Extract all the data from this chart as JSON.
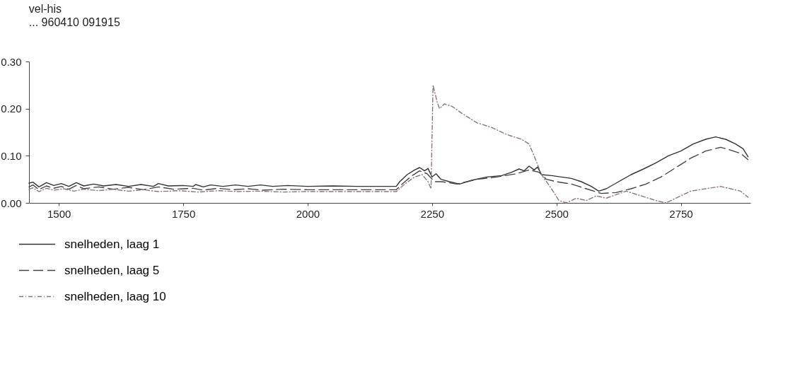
{
  "chart_data": {
    "type": "line",
    "title": "vel-his",
    "subtitle": "... 960410 091915",
    "xlim": [
      1440,
      2890
    ],
    "xticks": [
      1500,
      1750,
      2000,
      2250,
      2500,
      2750
    ],
    "ylim": [
      0,
      0.3
    ],
    "yticks": [
      {
        "value": 0,
        "label": "0.00"
      },
      {
        "value": 0.1,
        "label": "0.10"
      },
      {
        "value": 0.2,
        "label": "0.20"
      },
      {
        "value": 0.3,
        "label": "0.30"
      }
    ],
    "grid": false,
    "legend": "bottom left",
    "series": [
      {
        "name": "snelheden, laag 1",
        "color": "#333333",
        "line_style": "solid",
        "x": [
          1440,
          1448,
          1460,
          1475,
          1490,
          1505,
          1520,
          1535,
          1550,
          1570,
          1590,
          1615,
          1640,
          1665,
          1690,
          1700,
          1720,
          1750,
          1770,
          1775,
          1790,
          1805,
          1830,
          1855,
          1880,
          1905,
          1930,
          1960,
          2000,
          2050,
          2100,
          2178,
          2185,
          2200,
          2215,
          2225,
          2235,
          2242,
          2250,
          2258,
          2268,
          2285,
          2305,
          2330,
          2360,
          2390,
          2410,
          2425,
          2435,
          2445,
          2455,
          2462,
          2470,
          2490,
          2510,
          2530,
          2550,
          2570,
          2585,
          2600,
          2625,
          2650,
          2675,
          2700,
          2725,
          2750,
          2775,
          2800,
          2820,
          2840,
          2860,
          2875,
          2885
        ],
        "values": [
          0.042,
          0.044,
          0.034,
          0.043,
          0.037,
          0.041,
          0.035,
          0.043,
          0.036,
          0.04,
          0.036,
          0.039,
          0.035,
          0.039,
          0.035,
          0.041,
          0.036,
          0.037,
          0.035,
          0.039,
          0.034,
          0.038,
          0.035,
          0.038,
          0.035,
          0.038,
          0.035,
          0.037,
          0.035,
          0.036,
          0.035,
          0.035,
          0.045,
          0.06,
          0.07,
          0.075,
          0.068,
          0.073,
          0.055,
          0.062,
          0.05,
          0.045,
          0.04,
          0.048,
          0.055,
          0.058,
          0.065,
          0.072,
          0.068,
          0.078,
          0.07,
          0.076,
          0.06,
          0.058,
          0.055,
          0.052,
          0.045,
          0.035,
          0.025,
          0.03,
          0.045,
          0.06,
          0.072,
          0.085,
          0.1,
          0.11,
          0.125,
          0.135,
          0.14,
          0.135,
          0.125,
          0.115,
          0.098
        ]
      },
      {
        "name": "snelheden, laag 5",
        "color": "#444444",
        "line_style": "dashed",
        "x": [
          1440,
          1448,
          1460,
          1475,
          1490,
          1505,
          1520,
          1535,
          1550,
          1580,
          1610,
          1640,
          1670,
          1700,
          1730,
          1770,
          1790,
          1820,
          1850,
          1880,
          1910,
          1950,
          2000,
          2100,
          2178,
          2190,
          2210,
          2225,
          2240,
          2255,
          2270,
          2300,
          2340,
          2380,
          2420,
          2445,
          2465,
          2480,
          2500,
          2530,
          2560,
          2590,
          2620,
          2650,
          2680,
          2710,
          2740,
          2770,
          2800,
          2830,
          2850,
          2870,
          2885
        ],
        "values": [
          0.034,
          0.038,
          0.028,
          0.036,
          0.031,
          0.035,
          0.029,
          0.037,
          0.03,
          0.034,
          0.029,
          0.033,
          0.028,
          0.034,
          0.029,
          0.031,
          0.027,
          0.031,
          0.028,
          0.03,
          0.027,
          0.029,
          0.028,
          0.028,
          0.028,
          0.04,
          0.058,
          0.068,
          0.062,
          0.045,
          0.045,
          0.04,
          0.05,
          0.055,
          0.062,
          0.07,
          0.065,
          0.05,
          0.045,
          0.04,
          0.03,
          0.02,
          0.022,
          0.03,
          0.04,
          0.055,
          0.075,
          0.095,
          0.11,
          0.118,
          0.112,
          0.105,
          0.092
        ]
      },
      {
        "name": "snelheden, laag 10",
        "color": "#8a7676",
        "line_style": "dotted",
        "x": [
          1440,
          1448,
          1460,
          1475,
          1490,
          1510,
          1530,
          1550,
          1580,
          1610,
          1640,
          1670,
          1700,
          1740,
          1780,
          1820,
          1860,
          1900,
          1950,
          2000,
          2100,
          2178,
          2195,
          2215,
          2230,
          2242,
          2248,
          2252,
          2260,
          2265,
          2275,
          2290,
          2310,
          2340,
          2370,
          2400,
          2430,
          2445,
          2455,
          2470,
          2490,
          2505,
          2520,
          2540,
          2560,
          2580,
          2600,
          2640,
          2670,
          2700,
          2720,
          2740,
          2770,
          2800,
          2830,
          2850,
          2870,
          2885
        ],
        "values": [
          0.029,
          0.032,
          0.024,
          0.031,
          0.027,
          0.03,
          0.025,
          0.029,
          0.026,
          0.029,
          0.025,
          0.028,
          0.024,
          0.026,
          0.023,
          0.026,
          0.024,
          0.025,
          0.023,
          0.024,
          0.024,
          0.024,
          0.04,
          0.055,
          0.06,
          0.045,
          0.03,
          0.25,
          0.215,
          0.2,
          0.21,
          0.205,
          0.19,
          0.17,
          0.16,
          0.145,
          0.135,
          0.125,
          0.1,
          0.06,
          0.03,
          0.005,
          0.0,
          0.01,
          0.005,
          0.015,
          0.01,
          0.025,
          0.015,
          0.005,
          0.0,
          0.01,
          0.025,
          0.03,
          0.035,
          0.03,
          0.025,
          0.012
        ]
      }
    ]
  }
}
